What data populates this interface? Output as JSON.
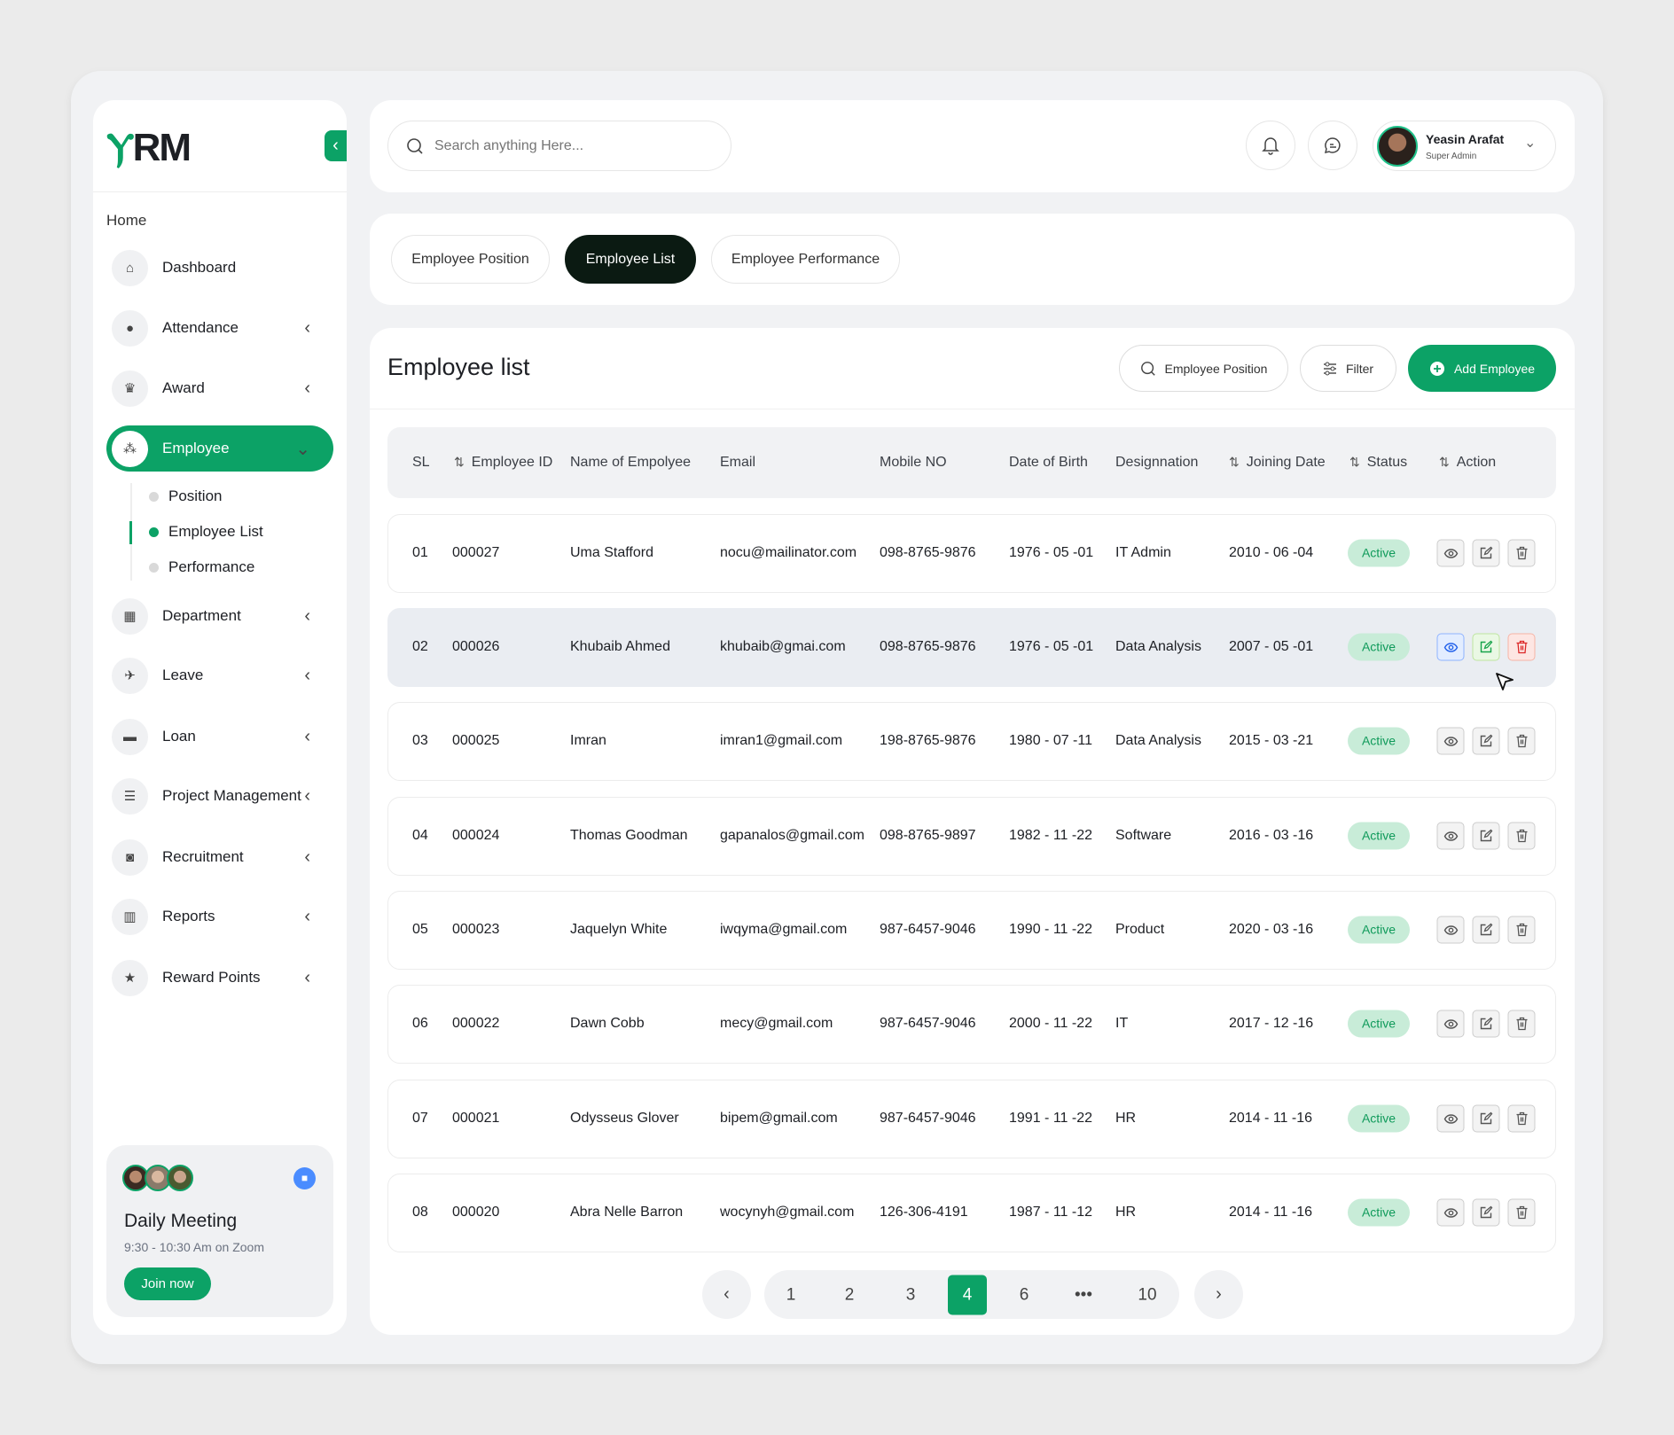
{
  "brand": {
    "logo_text": "HRM",
    "accent": "#0ca266"
  },
  "sidebar": {
    "section": "Home",
    "items": [
      {
        "label": "Dashboard",
        "icon": "home-icon",
        "chevron": false
      },
      {
        "label": "Attendance",
        "icon": "user-icon",
        "chevron": true
      },
      {
        "label": "Award",
        "icon": "trophy-icon",
        "chevron": true
      },
      {
        "label": "Employee",
        "icon": "team-icon",
        "chevron": true,
        "active": true
      },
      {
        "label": "Department",
        "icon": "building-icon",
        "chevron": true
      },
      {
        "label": "Leave",
        "icon": "plane-icon",
        "chevron": true
      },
      {
        "label": "Loan",
        "icon": "card-icon",
        "chevron": true
      },
      {
        "label": "Project Management",
        "icon": "checklist-icon",
        "chevron": true
      },
      {
        "label": "Recruitment",
        "icon": "briefcase-icon",
        "chevron": true
      },
      {
        "label": "Reports",
        "icon": "report-icon",
        "chevron": true
      },
      {
        "label": "Reward Points",
        "icon": "star-icon",
        "chevron": true
      }
    ],
    "sub_items": [
      {
        "label": "Position"
      },
      {
        "label": "Employee List",
        "active": true
      },
      {
        "label": "Performance"
      }
    ],
    "meeting": {
      "title": "Daily Meeting",
      "time": "9:30 - 10:30 Am on Zoom",
      "button": "Join now"
    }
  },
  "header": {
    "search_placeholder": "Search anything Here...",
    "user": {
      "name": "Yeasin Arafat",
      "role": "Super Admin"
    }
  },
  "tabs": [
    {
      "label": "Employee Position"
    },
    {
      "label": "Employee List",
      "active": true
    },
    {
      "label": "Employee Performance"
    }
  ],
  "main": {
    "title": "Employee list",
    "position_button": "Employee Position",
    "filter_button": "Filter",
    "add_button": "Add Employee",
    "columns": [
      "SL",
      "Employee ID",
      "Name of Empolyee",
      "Email",
      "Mobile NO",
      "Date of Birth",
      "Designnation",
      "Joining Date",
      "Status",
      "Action"
    ],
    "rows": [
      [
        "01",
        "000027",
        "Uma Stafford",
        "nocu@mailinator.com",
        "098-8765-9876",
        "1976 - 05 -01",
        "IT Admin",
        "2010 - 06 -04",
        "Active"
      ],
      [
        "02",
        "000026",
        "Khubaib Ahmed",
        "khubaib@gmai.com",
        "098-8765-9876",
        "1976 - 05 -01",
        "Data Analysis",
        "2007 - 05 -01",
        "Active"
      ],
      [
        "03",
        "000025",
        "Imran",
        "imran1@gmail.com",
        "198-8765-9876",
        "1980 - 07 -11",
        "Data Analysis",
        "2015 - 03 -21",
        "Active"
      ],
      [
        "04",
        "000024",
        "Thomas Goodman",
        "gapanalos@gmail.com",
        "098-8765-9897",
        "1982 - 11 -22",
        "Software",
        "2016 - 03 -16",
        "Active"
      ],
      [
        "05",
        "000023",
        "Jaquelyn White",
        "iwqyma@gmail.com",
        "987-6457-9046",
        "1990 - 11 -22",
        "Product",
        "2020 - 03 -16",
        "Active"
      ],
      [
        "06",
        "000022",
        "Dawn Cobb",
        "mecy@gmail.com",
        "987-6457-9046",
        "2000 - 11 -22",
        "IT",
        "2017 - 12 -16",
        "Active"
      ],
      [
        "07",
        "000021",
        "Odysseus Glover",
        "bipem@gmail.com",
        "987-6457-9046",
        "1991 - 11 -22",
        "HR",
        "2014 - 11 -16",
        "Active"
      ],
      [
        "08",
        "000020",
        "Abra Nelle Barron",
        "wocynyh@gmail.com",
        "126-306-4191",
        "1987 - 11 -12",
        "HR",
        "2014 - 11 -16",
        "Active"
      ]
    ],
    "highlighted_row": 1,
    "pagination": {
      "pages": [
        "1",
        "2",
        "3",
        "4",
        "6",
        "•••",
        "10"
      ],
      "current": "4"
    }
  }
}
